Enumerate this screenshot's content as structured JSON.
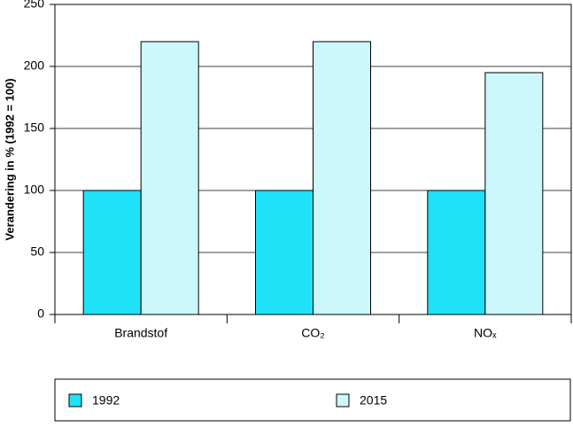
{
  "chart_data": {
    "type": "bar",
    "y_label": "Verandering in % (1992 = 100)",
    "categories": [
      "Brandstof",
      "CO₂",
      "NOₓ"
    ],
    "series": [
      {
        "name": "1992",
        "color": "#1fe1f8",
        "values": [
          100,
          100,
          100
        ]
      },
      {
        "name": "2015",
        "color": "#ccf7fc",
        "values": [
          220,
          220,
          195
        ]
      }
    ],
    "ylim": [
      0,
      250
    ],
    "yticks": [
      0,
      50,
      100,
      150,
      200,
      250
    ],
    "grid": true
  }
}
